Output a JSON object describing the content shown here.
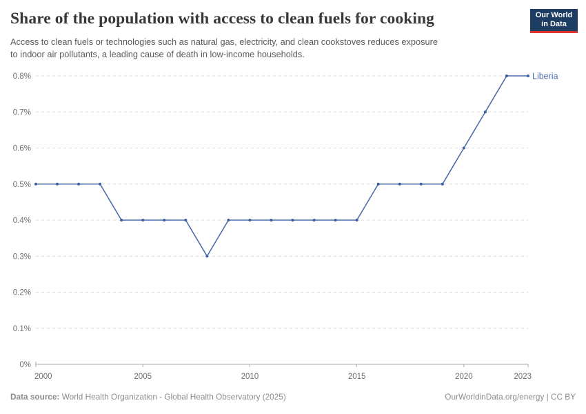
{
  "header": {
    "title": "Share of the population with access to clean fuels for cooking",
    "subtitle_lines": [
      "Access to clean fuels or technologies such as natural gas, electricity, and clean cookstoves reduces exposure",
      "to indoor air pollutants, a leading cause of death in low-income households."
    ],
    "logo": {
      "line1": "Our World",
      "line2": "in Data",
      "bg_color": "#1d3d63",
      "accent_color": "#e0352c"
    }
  },
  "chart_data": {
    "type": "line",
    "title": "Share of the population with access to clean fuels for cooking",
    "unit": "%",
    "x": [
      2000,
      2001,
      2002,
      2003,
      2004,
      2005,
      2006,
      2007,
      2008,
      2009,
      2010,
      2011,
      2012,
      2013,
      2014,
      2015,
      2016,
      2017,
      2018,
      2019,
      2020,
      2021,
      2022,
      2023
    ],
    "series": [
      {
        "name": "Liberia",
        "color": "#4c6ca8",
        "dot_color": "#3d5f9f",
        "values": [
          0.5,
          0.5,
          0.5,
          0.5,
          0.4,
          0.4,
          0.4,
          0.4,
          0.3,
          0.4,
          0.4,
          0.4,
          0.4,
          0.4,
          0.4,
          0.4,
          0.5,
          0.5,
          0.5,
          0.5,
          0.6,
          0.7,
          0.8,
          0.8
        ]
      }
    ],
    "xlim": [
      2000,
      2023
    ],
    "ylim": [
      0,
      0.8
    ],
    "x_axis": {
      "ticks": [
        {
          "value": 2000,
          "label": "2000"
        },
        {
          "value": 2005,
          "label": "2005"
        },
        {
          "value": 2010,
          "label": "2010"
        },
        {
          "value": 2015,
          "label": "2015"
        },
        {
          "value": 2020,
          "label": "2020"
        },
        {
          "value": 2023,
          "label": "2023"
        }
      ]
    },
    "y_axis": {
      "ticks": [
        {
          "value": 0,
          "label": "0%"
        },
        {
          "value": 0.1,
          "label": "0.1%"
        },
        {
          "value": 0.2,
          "label": "0.2%"
        },
        {
          "value": 0.3,
          "label": "0.3%"
        },
        {
          "value": 0.4,
          "label": "0.4%"
        },
        {
          "value": 0.5,
          "label": "0.5%"
        },
        {
          "value": 0.6,
          "label": "0.6%"
        },
        {
          "value": 0.7,
          "label": "0.7%"
        },
        {
          "value": 0.8,
          "label": "0.8%"
        }
      ]
    },
    "grid": "horizontal-dashed",
    "legend": "line-end-label"
  },
  "footer": {
    "datasource_label": "Data source:",
    "datasource_value": " World Health Organization - Global Health Observatory (2025)",
    "credit": "OurWorldinData.org/energy | CC BY"
  }
}
